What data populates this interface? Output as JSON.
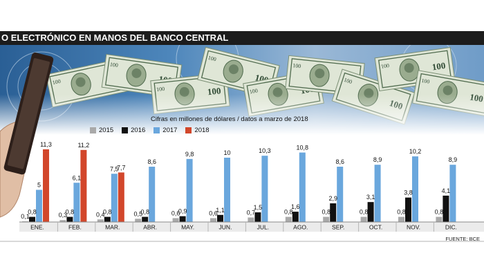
{
  "header": {
    "title": "O ELECTRÓNICO EN MANOS DEL BANCO CENTRAL"
  },
  "colors": {
    "s2015": "#a9a9a9",
    "s2016": "#111111",
    "s2017": "#6aa7dd",
    "s2018": "#d2472b"
  },
  "chart_data": {
    "type": "bar",
    "subtitle": "Cifras en millones de dólares / datos a marzo de 2018",
    "categories": [
      "ENE.",
      "FEB.",
      "MAR.",
      "ABR.",
      "MAY.",
      "JUN.",
      "JUL.",
      "AGO.",
      "SEP.",
      "OCT.",
      "NOV.",
      "DIC."
    ],
    "series": [
      {
        "name": "2015",
        "values": [
          0.1,
          0.3,
          0.4,
          0.5,
          0.6,
          0.6,
          0.7,
          0.8,
          0.8,
          0.8,
          0.8,
          0.8
        ],
        "labels": [
          "0,1",
          "0,3",
          "0,4",
          "0,5",
          "0,6",
          "0,6",
          "0,7",
          "0,8",
          "0,8",
          "0,8",
          "0,8",
          "0,8"
        ]
      },
      {
        "name": "2016",
        "values": [
          0.8,
          0.8,
          0.8,
          0.8,
          0.9,
          1.1,
          1.5,
          1.6,
          2.9,
          3.1,
          3.8,
          4.1
        ],
        "labels": [
          "0,8",
          "0,8",
          "0,8",
          "0,8",
          "0,9",
          "1,1",
          "1,5",
          "1,6",
          "2,9",
          "3,1",
          "3,8",
          "4,1"
        ]
      },
      {
        "name": "2017",
        "values": [
          5,
          6.1,
          7.5,
          8.6,
          9.8,
          10,
          10.3,
          10.8,
          8.6,
          8.9,
          10.2,
          8.9
        ],
        "labels": [
          "5",
          "6,1",
          "7,5",
          "8,6",
          "9,8",
          "10",
          "10,3",
          "10,8",
          "8,6",
          "8,9",
          "10,2",
          "8,9"
        ]
      },
      {
        "name": "2018",
        "values": [
          11.3,
          11.2,
          7.7,
          null,
          null,
          null,
          null,
          null,
          null,
          null,
          null,
          null
        ],
        "labels": [
          "11,3",
          "11,2",
          "7,7",
          null,
          null,
          null,
          null,
          null,
          null,
          null,
          null,
          null
        ]
      }
    ],
    "source": "FUENTE: BCE"
  }
}
